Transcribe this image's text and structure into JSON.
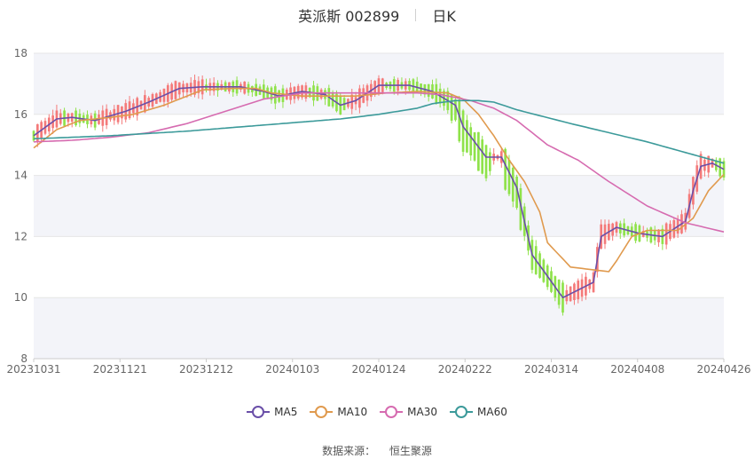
{
  "title": {
    "name": "英派斯 002899",
    "period": "日K"
  },
  "source": {
    "label": "数据来源：",
    "value": "恒生聚源"
  },
  "colors": {
    "up": "#f47a7a",
    "down": "#8fe24a",
    "grid": "#e6e6e6",
    "band": "#f3f4f9"
  },
  "chart_data": {
    "type": "candlestick",
    "ylim": [
      8,
      18
    ],
    "yticks": [
      8,
      10,
      12,
      14,
      16,
      18
    ],
    "xticks": [
      "20231031",
      "20231121",
      "20231212",
      "20240103",
      "20240124",
      "20240222",
      "20240314",
      "20240408",
      "20240426"
    ],
    "series": [
      {
        "name": "MA5",
        "color": "#6a4fa8"
      },
      {
        "name": "MA10",
        "color": "#e09a4e"
      },
      {
        "name": "MA30",
        "color": "#d66bb0"
      },
      {
        "name": "MA60",
        "color": "#3c9a9a"
      }
    ],
    "ma_points": [
      {
        "name": "MA5",
        "x": [
          0,
          6,
          10,
          16,
          24,
          30,
          38,
          44,
          54,
          60,
          64,
          70,
          76,
          80,
          84,
          90,
          98,
          104,
          110,
          112,
          118,
          122,
          126,
          130,
          138,
          146,
          148,
          152,
          158,
          164,
          170,
          172,
          174,
          177,
          180
        ],
        "y": [
          15.3,
          15.85,
          15.9,
          15.8,
          16.1,
          16.4,
          16.85,
          16.9,
          16.9,
          16.75,
          16.6,
          16.75,
          16.65,
          16.3,
          16.45,
          16.95,
          16.95,
          16.75,
          16.3,
          15.6,
          14.6,
          14.6,
          13.6,
          11.4,
          10.0,
          10.5,
          12.0,
          12.3,
          12.1,
          12.0,
          12.5,
          13.5,
          14.3,
          14.4,
          14.2
        ]
      },
      {
        "name": "MA10",
        "x": [
          0,
          6,
          12,
          20,
          26,
          34,
          44,
          52,
          58,
          62,
          70,
          80,
          84,
          92,
          100,
          108,
          112,
          116,
          120,
          124,
          128,
          132,
          134,
          140,
          150,
          152,
          156,
          160,
          168,
          172,
          176,
          182
        ],
        "y": [
          14.9,
          15.5,
          15.8,
          15.9,
          16.0,
          16.3,
          16.8,
          16.85,
          16.85,
          16.7,
          16.6,
          16.6,
          16.6,
          16.7,
          16.75,
          16.7,
          16.5,
          16.0,
          15.3,
          14.5,
          13.8,
          12.8,
          11.8,
          11.0,
          10.85,
          11.2,
          12.0,
          12.2,
          12.2,
          12.6,
          13.5,
          14.3
        ]
      },
      {
        "name": "MA30",
        "x": [
          0,
          10,
          20,
          30,
          40,
          50,
          60,
          70,
          80,
          90,
          100,
          106,
          110,
          114,
          120,
          126,
          134,
          142,
          150,
          160,
          170,
          180
        ],
        "y": [
          15.1,
          15.15,
          15.25,
          15.4,
          15.7,
          16.1,
          16.5,
          16.7,
          16.7,
          16.7,
          16.7,
          16.65,
          16.55,
          16.45,
          16.2,
          15.8,
          15.0,
          14.5,
          13.8,
          13.0,
          12.45,
          12.15
        ]
      },
      {
        "name": "MA60",
        "x": [
          0,
          20,
          40,
          60,
          80,
          90,
          100,
          104,
          110,
          116,
          120,
          126,
          140,
          160,
          180
        ],
        "y": [
          15.2,
          15.3,
          15.45,
          15.65,
          15.85,
          16.0,
          16.2,
          16.35,
          16.45,
          16.45,
          16.4,
          16.15,
          15.7,
          15.1,
          14.4
        ]
      }
    ]
  }
}
